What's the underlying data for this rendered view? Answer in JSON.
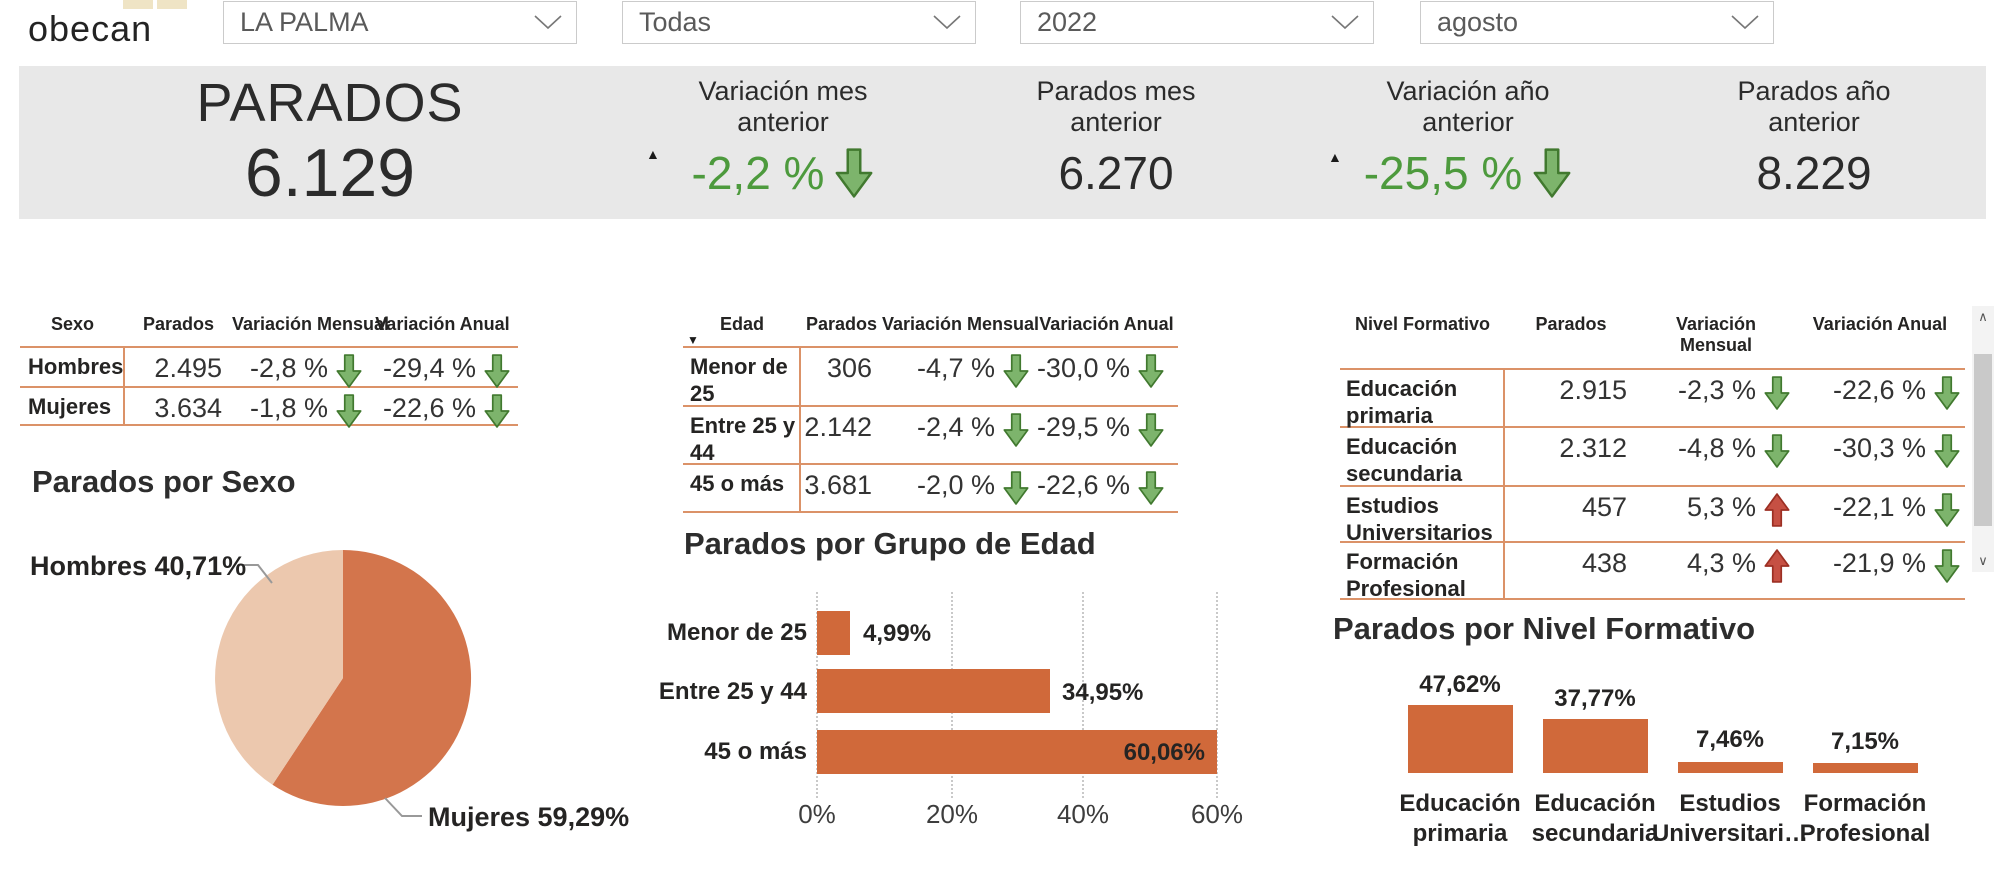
{
  "brand": {
    "name": "obecan"
  },
  "filters": {
    "values": [
      "LA PALMA",
      "Todas",
      "2022",
      "agosto"
    ]
  },
  "summary": {
    "title": "PARADOS",
    "total": "6.129",
    "cards": [
      {
        "label": "Variación mes anterior",
        "value": "-2,2 %",
        "trend": "down",
        "marker": "▲"
      },
      {
        "label": "Parados mes anterior",
        "value": "6.270"
      },
      {
        "label": "Variación año anterior",
        "value": "-25,5 %",
        "trend": "down",
        "marker": "▲"
      },
      {
        "label": "Parados año anterior",
        "value": "8.229"
      }
    ]
  },
  "tables": {
    "sexo": {
      "headers": {
        "col1": "Sexo",
        "col2": "Parados",
        "col3": "Variación Mensual",
        "col4": "Variación Anual"
      },
      "rows": [
        {
          "label": "Hombres",
          "parados": "2.495",
          "mensual": "-2,8 %",
          "mensual_trend": "down",
          "anual": "-29,4 %",
          "anual_trend": "down"
        },
        {
          "label": "Mujeres",
          "parados": "3.634",
          "mensual": "-1,8 %",
          "mensual_trend": "down",
          "anual": "-22,6 %",
          "anual_trend": "down"
        }
      ]
    },
    "edad": {
      "headers": {
        "col1": "Edad",
        "col2": "Parados",
        "col3": "Variación Mensual",
        "col4": "Variación Anual"
      },
      "sort_indicator": "▼",
      "rows": [
        {
          "label": "Menor de 25",
          "parados": "306",
          "mensual": "-4,7 %",
          "mensual_trend": "down",
          "anual": "-30,0 %",
          "anual_trend": "down"
        },
        {
          "label": "Entre 25 y 44",
          "parados": "2.142",
          "mensual": "-2,4 %",
          "mensual_trend": "down",
          "anual": "-29,5 %",
          "anual_trend": "down"
        },
        {
          "label": "45 o más",
          "parados": "3.681",
          "mensual": "-2,0 %",
          "mensual_trend": "down",
          "anual": "-22,6 %",
          "anual_trend": "down"
        }
      ]
    },
    "nivel": {
      "headers": {
        "col1": "Nivel Formativo",
        "col2": "Parados",
        "col3": "Variación Mensual",
        "col4": "Variación Anual"
      },
      "rows": [
        {
          "label": "Educación primaria",
          "parados": "2.915",
          "mensual": "-2,3 %",
          "mensual_trend": "down",
          "anual": "-22,6 %",
          "anual_trend": "down"
        },
        {
          "label": "Educación secundaria",
          "parados": "2.312",
          "mensual": "-4,8 %",
          "mensual_trend": "down",
          "anual": "-30,3 %",
          "anual_trend": "down"
        },
        {
          "label": "Estudios Universitarios",
          "parados": "457",
          "mensual": "5,3 %",
          "mensual_trend": "up",
          "anual": "-22,1 %",
          "anual_trend": "down"
        },
        {
          "label": "Formación Profesional",
          "parados": "438",
          "mensual": "4,3 %",
          "mensual_trend": "up",
          "anual": "-21,9 %",
          "anual_trend": "down"
        }
      ]
    }
  },
  "chart_data": [
    {
      "type": "pie",
      "title": "Parados por Sexo",
      "labels": [
        "Hombres",
        "Mujeres"
      ],
      "values": [
        40.71,
        59.29
      ],
      "callouts": [
        "Hombres 40,71%",
        "Mujeres 59,29%"
      ],
      "colors": [
        "#ECC8AE",
        "#D3754C"
      ],
      "legend": "callout-labels"
    },
    {
      "type": "bar",
      "orientation": "horizontal",
      "title": "Parados por Grupo de Edad",
      "categories": [
        "Menor de 25",
        "Entre 25 y 44",
        "45 o más"
      ],
      "values": [
        4.99,
        34.95,
        60.06
      ],
      "value_labels": [
        "4,99%",
        "34,95%",
        "60,06%"
      ],
      "x_ticks": [
        "0%",
        "20%",
        "40%",
        "60%"
      ],
      "x_max": 60,
      "grid": "dotted-vertical",
      "bar_color": "#D0693A"
    },
    {
      "type": "bar",
      "orientation": "vertical",
      "title": "Parados por Nivel Formativo",
      "categories": [
        "Educación primaria",
        "Educación secundaria",
        "Estudios Universitari…",
        "Formación Profesional"
      ],
      "values": [
        47.62,
        37.77,
        7.46,
        7.15
      ],
      "value_labels": [
        "47,62%",
        "37,77%",
        "7,46%",
        "7,15%"
      ],
      "ylim": [
        0,
        50
      ],
      "bar_color": "#D0693A"
    }
  ],
  "colors": {
    "band_bg": "#E8E8E8",
    "table_line": "#DB9268",
    "positive_green": "#4D9A3D",
    "negative_red": "#C65043",
    "bar_orange": "#D0693A",
    "pie_light": "#ECC8AE",
    "pie_dark": "#D3754C"
  }
}
